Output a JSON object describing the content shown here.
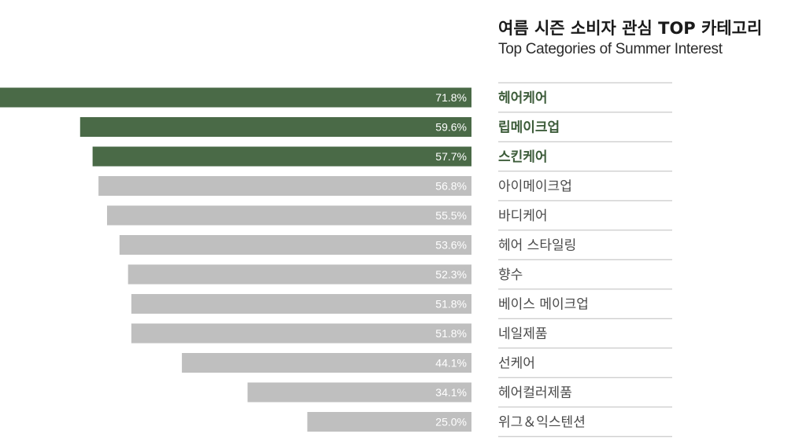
{
  "title": "여름 시즌 소비자 관심 TOP 카테고리",
  "subtitle": "Top Categories of Summer Interest",
  "colors": {
    "highlight": "#4a6a47",
    "normal": "#bfbfbf",
    "highlight_text": "#3d5c3a",
    "normal_text": "#4a4a4a",
    "value_text": "#ffffff",
    "rule": "#bdbdbd"
  },
  "chart_data": {
    "type": "bar",
    "orientation": "horizontal",
    "direction": "right-to-left",
    "unit": "%",
    "xlim": [
      0,
      71.8
    ],
    "categories": [
      "헤어케어",
      "립메이크업",
      "스킨케어",
      "아이메이크업",
      "바디케어",
      "헤어 스타일링",
      "향수",
      "베이스 메이크업",
      "네일제품",
      "선케어",
      "헤어컬러제품",
      "위그＆익스텐션"
    ],
    "values": [
      71.8,
      59.6,
      57.7,
      56.8,
      55.5,
      53.6,
      52.3,
      51.8,
      51.8,
      44.1,
      34.1,
      25.0
    ],
    "value_labels": [
      "71.8%",
      "59.6%",
      "57.7%",
      "56.8%",
      "55.5%",
      "53.6%",
      "52.3%",
      "51.8%",
      "51.8%",
      "44.1%",
      "34.1%",
      "25.0%"
    ],
    "highlighted": [
      "헤어케어",
      "립메이크업",
      "스킨케어"
    ],
    "grid": false,
    "legend": "none"
  }
}
